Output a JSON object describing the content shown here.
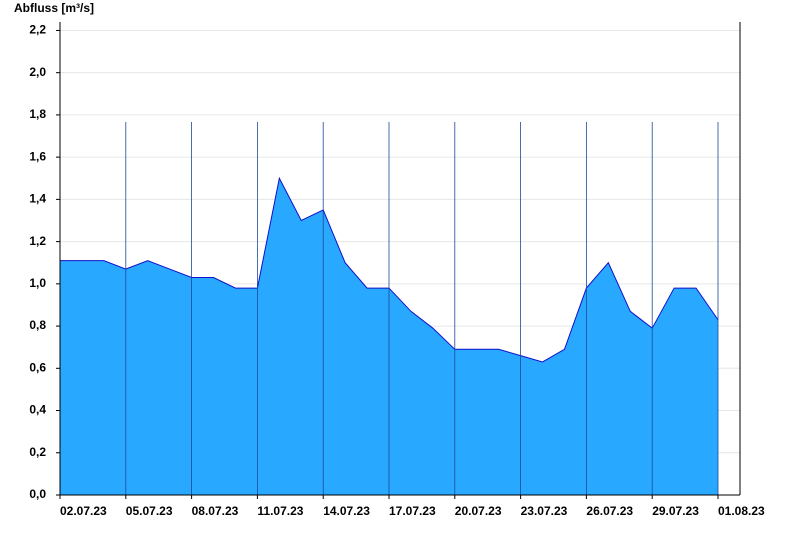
{
  "chart_data": {
    "type": "area",
    "title": "Abfluss [m³/s]",
    "x": [
      "2023-07-02",
      "2023-07-03",
      "2023-07-04",
      "2023-07-05",
      "2023-07-06",
      "2023-07-07",
      "2023-07-08",
      "2023-07-09",
      "2023-07-10",
      "2023-07-11",
      "2023-07-12",
      "2023-07-13",
      "2023-07-14",
      "2023-07-15",
      "2023-07-16",
      "2023-07-17",
      "2023-07-18",
      "2023-07-19",
      "2023-07-20",
      "2023-07-21",
      "2023-07-22",
      "2023-07-23",
      "2023-07-24",
      "2023-07-25",
      "2023-07-26",
      "2023-07-27",
      "2023-07-28",
      "2023-07-29",
      "2023-07-30",
      "2023-07-31",
      "2023-08-01"
    ],
    "series": [
      {
        "name": "Abfluss",
        "color": "#29a8ff",
        "line_color": "#1010cc",
        "values": [
          1.11,
          1.11,
          1.11,
          1.07,
          1.11,
          1.07,
          1.03,
          1.03,
          0.98,
          0.98,
          1.5,
          1.3,
          1.35,
          1.1,
          0.98,
          0.98,
          0.87,
          0.79,
          0.69,
          0.69,
          0.69,
          0.66,
          0.63,
          0.69,
          0.98,
          1.1,
          0.87,
          0.79,
          0.98,
          0.98,
          0.83
        ]
      }
    ],
    "xlim": [
      "2023-07-02",
      "2023-08-01"
    ],
    "xticks": [
      {
        "value": "2023-07-02",
        "label": "02.07.23"
      },
      {
        "value": "2023-07-05",
        "label": "05.07.23"
      },
      {
        "value": "2023-07-08",
        "label": "08.07.23"
      },
      {
        "value": "2023-07-11",
        "label": "11.07.23"
      },
      {
        "value": "2023-07-14",
        "label": "14.07.23"
      },
      {
        "value": "2023-07-17",
        "label": "17.07.23"
      },
      {
        "value": "2023-07-20",
        "label": "20.07.23"
      },
      {
        "value": "2023-07-23",
        "label": "23.07.23"
      },
      {
        "value": "2023-07-26",
        "label": "26.07.23"
      },
      {
        "value": "2023-07-29",
        "label": "29.07.23"
      },
      {
        "value": "2023-08-01",
        "label": "01.08.23"
      }
    ],
    "ylim": [
      0,
      2.24
    ],
    "yticks": [
      {
        "value": 0,
        "label": "0,0"
      },
      {
        "value": 0.2,
        "label": "0,2"
      },
      {
        "value": 0.4,
        "label": "0,4"
      },
      {
        "value": 0.6,
        "label": "0,6"
      },
      {
        "value": 0.8,
        "label": "0,8"
      },
      {
        "value": 1.0,
        "label": "1,0"
      },
      {
        "value": 1.2,
        "label": "1,2"
      },
      {
        "value": 1.4,
        "label": "1,4"
      },
      {
        "value": 1.6,
        "label": "1,6"
      },
      {
        "value": 1.8,
        "label": "1,8"
      },
      {
        "value": 2.0,
        "label": "2,0"
      },
      {
        "value": 2.2,
        "label": "2,2"
      }
    ],
    "grid": true
  }
}
